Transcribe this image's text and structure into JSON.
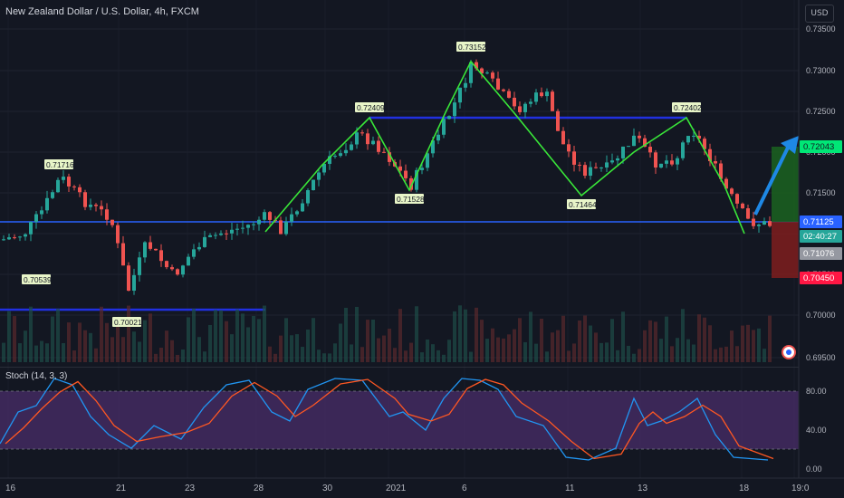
{
  "header": {
    "symbol_title": "New Zealand Dollar / U.S. Dollar, 4h, FXCM",
    "currency_button": "USD"
  },
  "price_axis": {
    "ticks": [
      "0.73500",
      "0.73000",
      "0.72500",
      "0.72000",
      "0.71500",
      "0.71000",
      "0.70500",
      "0.70000",
      "0.69500"
    ],
    "labels": [
      {
        "text": "0.72043",
        "bg": "#00e676",
        "fg": "#131722"
      },
      {
        "text": "0.71125",
        "bg": "#2962ff",
        "fg": "#ffffff"
      },
      {
        "text": "02:40:27",
        "bg": "#26a69a",
        "fg": "#ffffff"
      },
      {
        "text": "0.71076",
        "bg": "#9598a1",
        "fg": "#ffffff"
      },
      {
        "text": "0.70450",
        "bg": "#ff1744",
        "fg": "#ffffff"
      }
    ]
  },
  "time_axis": {
    "ticks": [
      "16",
      "21",
      "23",
      "28",
      "30",
      "2021",
      "6",
      "11",
      "13",
      "18",
      "19:0"
    ]
  },
  "pattern_labels": [
    "0.71716",
    "0.70539",
    "0.70021",
    "0.72409",
    "0.71528",
    "0.73152",
    "0.71464",
    "0.72402"
  ],
  "stochastic": {
    "label": "Stoch (14, 3, 3)",
    "ticks": [
      "80.00",
      "40.00",
      "0.00"
    ]
  },
  "colors": {
    "background": "#131722",
    "bull": "#26a69a",
    "bear": "#ef5350",
    "pattern": "#39e639",
    "level": "#2962ff",
    "stoch_k": "#2196f3",
    "stoch_d": "#ff5722",
    "stoch_band": "#4a2d6a"
  },
  "icons": {
    "target_arrow": "arrow-up-right-icon",
    "event_marker": "flag-event-icon"
  }
}
